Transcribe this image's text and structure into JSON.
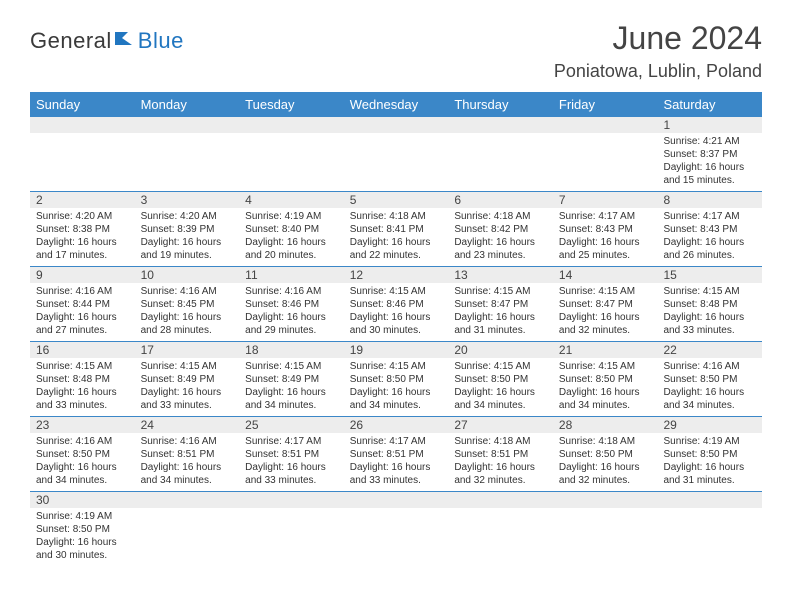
{
  "logo": {
    "text1": "General",
    "text2": "Blue"
  },
  "header": {
    "title": "June 2024",
    "location": "Poniatowa, Lublin, Poland"
  },
  "headerColor": "#3b87c8",
  "days": [
    "Sunday",
    "Monday",
    "Tuesday",
    "Wednesday",
    "Thursday",
    "Friday",
    "Saturday"
  ],
  "weeks": [
    {
      "nums": [
        "",
        "",
        "",
        "",
        "",
        "",
        "1"
      ],
      "cells": [
        null,
        null,
        null,
        null,
        null,
        null,
        {
          "sunrise": "4:21 AM",
          "sunset": "8:37 PM",
          "daylight": "16 hours and 15 minutes."
        }
      ]
    },
    {
      "nums": [
        "2",
        "3",
        "4",
        "5",
        "6",
        "7",
        "8"
      ],
      "cells": [
        {
          "sunrise": "4:20 AM",
          "sunset": "8:38 PM",
          "daylight": "16 hours and 17 minutes."
        },
        {
          "sunrise": "4:20 AM",
          "sunset": "8:39 PM",
          "daylight": "16 hours and 19 minutes."
        },
        {
          "sunrise": "4:19 AM",
          "sunset": "8:40 PM",
          "daylight": "16 hours and 20 minutes."
        },
        {
          "sunrise": "4:18 AM",
          "sunset": "8:41 PM",
          "daylight": "16 hours and 22 minutes."
        },
        {
          "sunrise": "4:18 AM",
          "sunset": "8:42 PM",
          "daylight": "16 hours and 23 minutes."
        },
        {
          "sunrise": "4:17 AM",
          "sunset": "8:43 PM",
          "daylight": "16 hours and 25 minutes."
        },
        {
          "sunrise": "4:17 AM",
          "sunset": "8:43 PM",
          "daylight": "16 hours and 26 minutes."
        }
      ]
    },
    {
      "nums": [
        "9",
        "10",
        "11",
        "12",
        "13",
        "14",
        "15"
      ],
      "cells": [
        {
          "sunrise": "4:16 AM",
          "sunset": "8:44 PM",
          "daylight": "16 hours and 27 minutes."
        },
        {
          "sunrise": "4:16 AM",
          "sunset": "8:45 PM",
          "daylight": "16 hours and 28 minutes."
        },
        {
          "sunrise": "4:16 AM",
          "sunset": "8:46 PM",
          "daylight": "16 hours and 29 minutes."
        },
        {
          "sunrise": "4:15 AM",
          "sunset": "8:46 PM",
          "daylight": "16 hours and 30 minutes."
        },
        {
          "sunrise": "4:15 AM",
          "sunset": "8:47 PM",
          "daylight": "16 hours and 31 minutes."
        },
        {
          "sunrise": "4:15 AM",
          "sunset": "8:47 PM",
          "daylight": "16 hours and 32 minutes."
        },
        {
          "sunrise": "4:15 AM",
          "sunset": "8:48 PM",
          "daylight": "16 hours and 33 minutes."
        }
      ]
    },
    {
      "nums": [
        "16",
        "17",
        "18",
        "19",
        "20",
        "21",
        "22"
      ],
      "cells": [
        {
          "sunrise": "4:15 AM",
          "sunset": "8:48 PM",
          "daylight": "16 hours and 33 minutes."
        },
        {
          "sunrise": "4:15 AM",
          "sunset": "8:49 PM",
          "daylight": "16 hours and 33 minutes."
        },
        {
          "sunrise": "4:15 AM",
          "sunset": "8:49 PM",
          "daylight": "16 hours and 34 minutes."
        },
        {
          "sunrise": "4:15 AM",
          "sunset": "8:50 PM",
          "daylight": "16 hours and 34 minutes."
        },
        {
          "sunrise": "4:15 AM",
          "sunset": "8:50 PM",
          "daylight": "16 hours and 34 minutes."
        },
        {
          "sunrise": "4:15 AM",
          "sunset": "8:50 PM",
          "daylight": "16 hours and 34 minutes."
        },
        {
          "sunrise": "4:16 AM",
          "sunset": "8:50 PM",
          "daylight": "16 hours and 34 minutes."
        }
      ]
    },
    {
      "nums": [
        "23",
        "24",
        "25",
        "26",
        "27",
        "28",
        "29"
      ],
      "cells": [
        {
          "sunrise": "4:16 AM",
          "sunset": "8:50 PM",
          "daylight": "16 hours and 34 minutes."
        },
        {
          "sunrise": "4:16 AM",
          "sunset": "8:51 PM",
          "daylight": "16 hours and 34 minutes."
        },
        {
          "sunrise": "4:17 AM",
          "sunset": "8:51 PM",
          "daylight": "16 hours and 33 minutes."
        },
        {
          "sunrise": "4:17 AM",
          "sunset": "8:51 PM",
          "daylight": "16 hours and 33 minutes."
        },
        {
          "sunrise": "4:18 AM",
          "sunset": "8:51 PM",
          "daylight": "16 hours and 32 minutes."
        },
        {
          "sunrise": "4:18 AM",
          "sunset": "8:50 PM",
          "daylight": "16 hours and 32 minutes."
        },
        {
          "sunrise": "4:19 AM",
          "sunset": "8:50 PM",
          "daylight": "16 hours and 31 minutes."
        }
      ]
    },
    {
      "nums": [
        "30",
        "",
        "",
        "",
        "",
        "",
        ""
      ],
      "cells": [
        {
          "sunrise": "4:19 AM",
          "sunset": "8:50 PM",
          "daylight": "16 hours and 30 minutes."
        },
        null,
        null,
        null,
        null,
        null,
        null
      ]
    }
  ],
  "labels": {
    "sunrise": "Sunrise:",
    "sunset": "Sunset:",
    "daylight": "Daylight:"
  }
}
